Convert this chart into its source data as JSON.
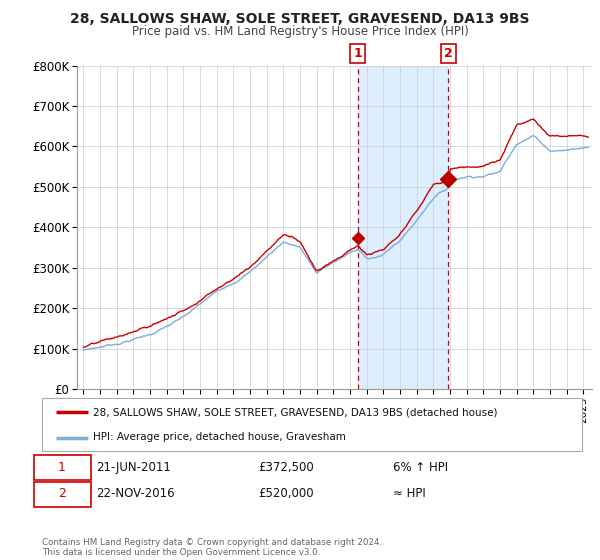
{
  "title": "28, SALLOWS SHAW, SOLE STREET, GRAVESEND, DA13 9BS",
  "subtitle": "Price paid vs. HM Land Registry's House Price Index (HPI)",
  "hpi_label": "HPI: Average price, detached house, Gravesham",
  "property_label": "28, SALLOWS SHAW, SOLE STREET, GRAVESEND, DA13 9BS (detached house)",
  "sale1_date": "21-JUN-2011",
  "sale1_price": "£372,500",
  "sale1_note": "6% ↑ HPI",
  "sale1_year": 2011.47,
  "sale1_value": 372500,
  "sale2_date": "22-NOV-2016",
  "sale2_price": "£520,000",
  "sale2_note": "≈ HPI",
  "sale2_year": 2016.9,
  "sale2_value": 520000,
  "hpi_color": "#7bafd4",
  "property_color": "#cc0000",
  "marker_color": "#bb0000",
  "bg_color": "#ffffff",
  "plot_bg": "#ffffff",
  "grid_color": "#cccccc",
  "shade_color": "#ddeeff",
  "vline_color": "#cc0000",
  "footnote": "Contains HM Land Registry data © Crown copyright and database right 2024.\nThis data is licensed under the Open Government Licence v3.0.",
  "ylim": [
    0,
    800000
  ],
  "yticks": [
    0,
    100000,
    200000,
    300000,
    400000,
    500000,
    600000,
    700000,
    800000
  ],
  "ytick_labels": [
    "£0",
    "£100K",
    "£200K",
    "£300K",
    "£400K",
    "£500K",
    "£600K",
    "£700K",
    "£800K"
  ]
}
